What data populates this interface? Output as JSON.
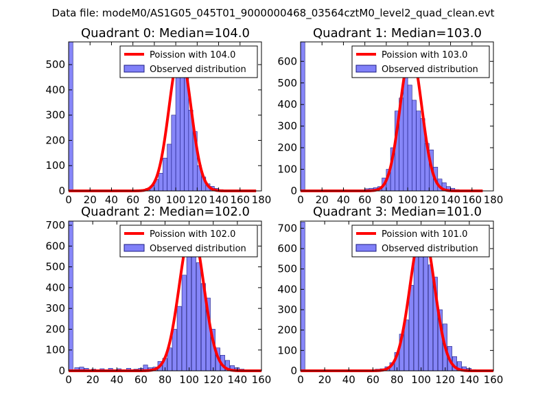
{
  "figure_title": "Data file: modeM0/AS1G05_045T01_9000000468_03564cztM0_level2_quad_clean.evt",
  "colors": {
    "bars": "#8080f8",
    "bar_edge": "#1a1a80",
    "curve": "#ff0000"
  },
  "chart_data": [
    {
      "type": "bar",
      "title": "Quadrant 0: Median=104.0",
      "median": 104.0,
      "xlim": [
        0,
        180
      ],
      "ylim": [
        0,
        590
      ],
      "xticks": [
        0,
        20,
        40,
        60,
        80,
        100,
        120,
        140,
        160,
        180
      ],
      "yticks": [
        0,
        100,
        200,
        300,
        400,
        500
      ],
      "legend": [
        "Poission with 104.0",
        "Observed distribution"
      ],
      "bin_width": 4,
      "bins": [
        [
          0,
          590
        ],
        [
          64,
          3
        ],
        [
          68,
          5
        ],
        [
          72,
          10
        ],
        [
          76,
          20
        ],
        [
          80,
          45
        ],
        [
          84,
          70
        ],
        [
          88,
          130
        ],
        [
          92,
          185
        ],
        [
          96,
          300
        ],
        [
          100,
          460
        ],
        [
          104,
          550
        ],
        [
          108,
          470
        ],
        [
          112,
          320
        ],
        [
          116,
          235
        ],
        [
          120,
          100
        ],
        [
          124,
          55
        ],
        [
          128,
          28
        ],
        [
          132,
          18
        ],
        [
          136,
          10
        ],
        [
          140,
          5
        ],
        [
          144,
          3
        ],
        [
          148,
          2
        ],
        [
          152,
          1
        ]
      ],
      "curve_range": [
        0,
        175
      ]
    },
    {
      "type": "bar",
      "title": "Quadrant 1: Median=103.0",
      "median": 103.0,
      "xlim": [
        0,
        180
      ],
      "ylim": [
        0,
        690
      ],
      "xticks": [
        0,
        20,
        40,
        60,
        80,
        100,
        120,
        140,
        160,
        180
      ],
      "yticks": [
        0,
        100,
        200,
        300,
        400,
        500,
        600
      ],
      "legend": [
        "Poission with 103.0",
        "Observed distribution"
      ],
      "bin_width": 4,
      "bins": [
        [
          0,
          690
        ],
        [
          60,
          10
        ],
        [
          64,
          12
        ],
        [
          68,
          15
        ],
        [
          72,
          20
        ],
        [
          76,
          60
        ],
        [
          80,
          100
        ],
        [
          84,
          200
        ],
        [
          88,
          370
        ],
        [
          92,
          430
        ],
        [
          96,
          590
        ],
        [
          100,
          490
        ],
        [
          104,
          420
        ],
        [
          108,
          370
        ],
        [
          112,
          335
        ],
        [
          116,
          220
        ],
        [
          120,
          190
        ],
        [
          124,
          110
        ],
        [
          128,
          55
        ],
        [
          132,
          38
        ],
        [
          136,
          20
        ],
        [
          140,
          12
        ],
        [
          144,
          6
        ],
        [
          148,
          3
        ]
      ],
      "curve_range": [
        0,
        170
      ]
    },
    {
      "type": "bar",
      "title": "Quadrant 2: Median=102.0",
      "median": 102.0,
      "xlim": [
        0,
        160
      ],
      "ylim": [
        0,
        720
      ],
      "xticks": [
        0,
        20,
        40,
        60,
        80,
        100,
        120,
        140,
        160
      ],
      "yticks": [
        0,
        100,
        200,
        300,
        400,
        500,
        600,
        700
      ],
      "legend": [
        "Poission with 102.0",
        "Observed distribution"
      ],
      "bin_width": 3.6,
      "bins": [
        [
          0,
          720
        ],
        [
          5,
          15
        ],
        [
          9,
          18
        ],
        [
          13,
          12
        ],
        [
          19,
          8
        ],
        [
          26,
          10
        ],
        [
          33,
          12
        ],
        [
          40,
          10
        ],
        [
          48,
          12
        ],
        [
          54,
          8
        ],
        [
          58,
          12
        ],
        [
          62,
          28
        ],
        [
          66,
          15
        ],
        [
          70,
          18
        ],
        [
          74,
          45
        ],
        [
          78,
          60
        ],
        [
          82,
          110
        ],
        [
          86,
          200
        ],
        [
          90,
          310
        ],
        [
          94,
          460
        ],
        [
          98,
          570
        ],
        [
          102,
          610
        ],
        [
          106,
          520
        ],
        [
          110,
          420
        ],
        [
          114,
          350
        ],
        [
          118,
          200
        ],
        [
          122,
          110
        ],
        [
          126,
          75
        ],
        [
          130,
          50
        ],
        [
          134,
          25
        ],
        [
          138,
          15
        ],
        [
          142,
          8
        ],
        [
          146,
          5
        ],
        [
          150,
          3
        ]
      ],
      "curve_range": [
        0,
        160
      ]
    },
    {
      "type": "bar",
      "title": "Quadrant 3: Median=101.0",
      "median": 101.0,
      "xlim": [
        0,
        160
      ],
      "ylim": [
        0,
        735
      ],
      "xticks": [
        0,
        20,
        40,
        60,
        80,
        100,
        120,
        140,
        160
      ],
      "yticks": [
        0,
        100,
        200,
        300,
        400,
        500,
        600,
        700
      ],
      "legend": [
        "Poission with 101.0",
        "Observed distribution"
      ],
      "bin_width": 3.6,
      "bins": [
        [
          0,
          730
        ],
        [
          58,
          5
        ],
        [
          62,
          8
        ],
        [
          66,
          10
        ],
        [
          70,
          20
        ],
        [
          74,
          40
        ],
        [
          78,
          90
        ],
        [
          82,
          180
        ],
        [
          86,
          250
        ],
        [
          90,
          420
        ],
        [
          94,
          600
        ],
        [
          98,
          690
        ],
        [
          102,
          660
        ],
        [
          106,
          520
        ],
        [
          110,
          460
        ],
        [
          114,
          300
        ],
        [
          118,
          230
        ],
        [
          122,
          120
        ],
        [
          126,
          70
        ],
        [
          130,
          45
        ],
        [
          134,
          20
        ],
        [
          138,
          12
        ],
        [
          142,
          6
        ],
        [
          146,
          3
        ]
      ],
      "curve_range": [
        0,
        160
      ]
    }
  ]
}
